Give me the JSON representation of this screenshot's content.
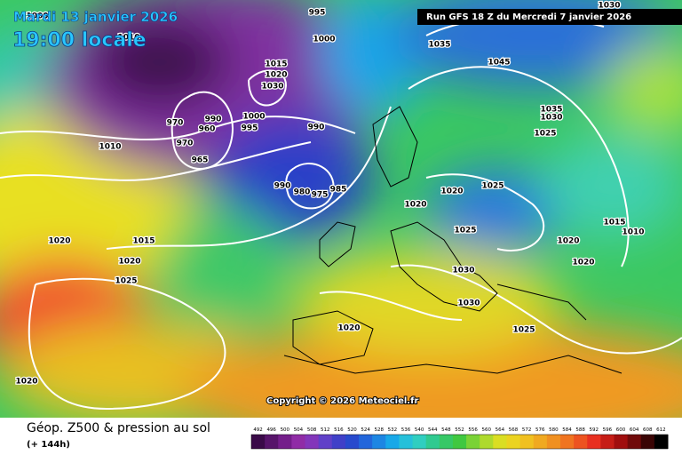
{
  "header": {
    "date": "Mardi 13 janvier 2026",
    "time": "19:00 locale",
    "run": "Run GFS 18 Z du Mercredi 7 janvier 2026"
  },
  "copyright": "Copyright © 2026 Meteociel.fr",
  "footer": {
    "title": "Géop. Z500 & pression au sol",
    "lead": "(+ 144h)"
  },
  "colorbar": {
    "labels": [
      492,
      496,
      500,
      504,
      508,
      512,
      516,
      520,
      524,
      528,
      532,
      536,
      540,
      544,
      548,
      552,
      556,
      560,
      564,
      568,
      572,
      576,
      580,
      584,
      588,
      592,
      596,
      600,
      604,
      608,
      612
    ]
  },
  "isobar_labels": [
    1000,
    1010,
    995,
    1000,
    1015,
    1020,
    1030,
    1000,
    995,
    990,
    960,
    970,
    970,
    965,
    1010,
    990,
    990,
    980,
    975,
    985,
    1035,
    1045,
    1035,
    1030,
    1025,
    1020,
    1025,
    1020,
    1025,
    1015,
    1010,
    1020,
    1020,
    1030,
    1030,
    1025,
    1020,
    1020,
    1015,
    1020,
    1025,
    1020,
    1030
  ]
}
